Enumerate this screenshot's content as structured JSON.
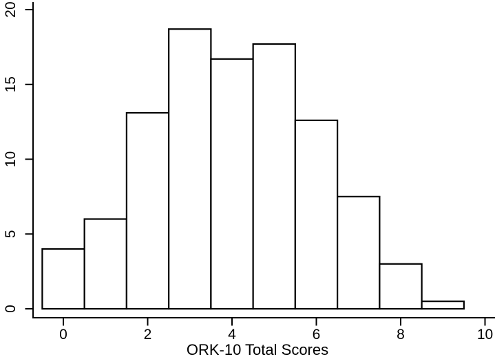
{
  "chart_data": {
    "type": "bar",
    "subtype": "histogram",
    "title": "",
    "xlabel": "ORK-10 Total Scores",
    "ylabel": "",
    "bin_centers": [
      0,
      1,
      2,
      3,
      4,
      5,
      6,
      7,
      8,
      9
    ],
    "bin_width": 1,
    "values": [
      4.0,
      6.0,
      13.1,
      18.7,
      16.7,
      17.7,
      12.6,
      7.5,
      3.0,
      0.5
    ],
    "x_ticks": [
      0,
      2,
      4,
      6,
      8,
      10
    ],
    "y_ticks": [
      0,
      5,
      10,
      15,
      20
    ],
    "xlim": [
      -0.72,
      10.23
    ],
    "ylim": [
      0,
      20.6
    ],
    "grid": "off",
    "legend": "none",
    "bar_fill": "#ffffff",
    "bar_stroke": "#000000",
    "axis_color": "#000000",
    "text_color": "#000000",
    "background": "#ffffff"
  }
}
